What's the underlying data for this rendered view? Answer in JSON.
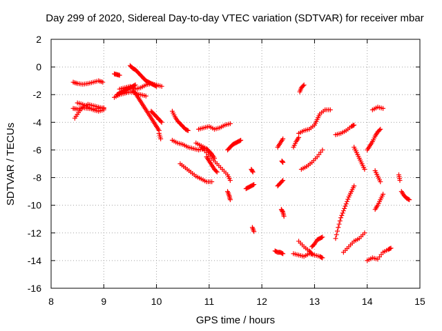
{
  "chart_data": {
    "type": "scatter",
    "title": "Day 299 of 2020, Sidereal Day-to-day VTEC variation (SDTVAR) for receiver mbar",
    "xlabel": "GPS time / hours",
    "ylabel": "SDTVAR / TECUs",
    "xlim": [
      8,
      15
    ],
    "ylim": [
      -16,
      2
    ],
    "xticks": [
      "8",
      "9",
      "10",
      "11",
      "12",
      "13",
      "14",
      "15"
    ],
    "yticks": [
      "2",
      "0",
      "-2",
      "-4",
      "-6",
      "-8",
      "-10",
      "-12",
      "-14",
      "-16"
    ],
    "grid": true,
    "marker": "plus",
    "color": "#ff0000",
    "segments": [
      {
        "x": [
          8.42,
          8.5,
          8.6,
          8.7,
          8.8,
          8.9,
          8.98
        ],
        "y": [
          -1.1,
          -1.2,
          -1.25,
          -1.2,
          -1.1,
          -1.0,
          -1.1
        ]
      },
      {
        "x": [
          8.42,
          8.5,
          8.6,
          8.7,
          8.8,
          8.9,
          9.0
        ],
        "y": [
          -3.0,
          -3.05,
          -2.95,
          -3.0,
          -3.05,
          -3.0,
          -2.95
        ]
      },
      {
        "x": [
          8.45,
          8.52,
          8.6,
          8.7,
          8.8,
          8.9,
          9.0
        ],
        "y": [
          -3.7,
          -3.3,
          -2.9,
          -2.7,
          -2.8,
          -2.9,
          -3.0
        ]
      },
      {
        "x": [
          8.5,
          8.6,
          8.7,
          8.8,
          8.9,
          9.0
        ],
        "y": [
          -2.6,
          -2.7,
          -2.9,
          -3.1,
          -3.2,
          -3.1
        ]
      },
      {
        "x": [
          9.2,
          9.25,
          9.3
        ],
        "y": [
          -0.5,
          -0.55,
          -0.6
        ]
      },
      {
        "x": [
          9.2,
          9.3,
          9.4,
          9.5,
          9.6,
          9.7,
          9.8
        ],
        "y": [
          -2.2,
          -2.0,
          -1.9,
          -1.8,
          -1.9,
          -2.0,
          -2.1
        ]
      },
      {
        "x": [
          9.3,
          9.4,
          9.5,
          9.6,
          9.7,
          9.8,
          9.9,
          10.0,
          10.1
        ],
        "y": [
          -1.6,
          -1.5,
          -1.4,
          -1.6,
          -1.5,
          -1.3,
          -1.2,
          -1.3,
          -1.4
        ]
      },
      {
        "x": [
          9.5,
          9.55,
          9.6,
          9.65,
          9.7,
          9.75,
          9.8,
          9.85,
          9.9,
          9.95,
          10.0
        ],
        "y": [
          0.1,
          -0.1,
          -0.2,
          -0.4,
          -0.6,
          -0.8,
          -1.0,
          -1.1,
          -1.2,
          -1.3,
          -1.4
        ]
      },
      {
        "x": [
          9.55,
          9.6,
          9.65,
          9.7,
          9.75,
          9.8,
          9.85,
          9.9,
          9.95,
          10.0,
          10.05
        ],
        "y": [
          -1.7,
          -1.9,
          -2.2,
          -2.5,
          -2.8,
          -3.1,
          -3.4,
          -3.7,
          -4.0,
          -4.3,
          -4.6
        ]
      },
      {
        "x": [
          9.25,
          9.3,
          9.35,
          9.4,
          9.45,
          9.5,
          9.55,
          9.6
        ],
        "y": [
          -2.0,
          -1.9,
          -1.8,
          -1.7,
          -1.6,
          -1.5,
          -1.4,
          -1.3
        ]
      },
      {
        "x": [
          9.9,
          9.95,
          10.0,
          10.05,
          10.1
        ],
        "y": [
          -3.2,
          -3.4,
          -3.6,
          -3.8,
          -4.0
        ]
      },
      {
        "x": [
          10.05,
          10.08
        ],
        "y": [
          -4.8,
          -5.2
        ]
      },
      {
        "x": [
          10.3,
          10.35,
          10.4,
          10.45,
          10.5,
          10.55,
          10.6
        ],
        "y": [
          -3.2,
          -3.6,
          -3.9,
          -4.1,
          -4.3,
          -4.5,
          -4.6
        ]
      },
      {
        "x": [
          10.3,
          10.4,
          10.5,
          10.6,
          10.7,
          10.8,
          10.9
        ],
        "y": [
          -5.3,
          -5.5,
          -5.6,
          -5.8,
          -5.9,
          -6.0,
          -5.9
        ]
      },
      {
        "x": [
          10.45,
          10.55,
          10.65,
          10.75,
          10.85,
          10.95,
          11.05
        ],
        "y": [
          -7.0,
          -7.3,
          -7.6,
          -7.9,
          -8.1,
          -8.3,
          -8.3
        ]
      },
      {
        "x": [
          10.8,
          10.9,
          11.0,
          11.1,
          11.2,
          11.3,
          11.4
        ],
        "y": [
          -4.5,
          -4.4,
          -4.3,
          -4.5,
          -4.4,
          -4.2,
          -4.1
        ]
      },
      {
        "x": [
          10.75,
          10.85,
          10.95,
          11.0,
          11.05,
          11.1
        ],
        "y": [
          -5.5,
          -5.7,
          -5.9,
          -6.1,
          -6.3,
          -6.6
        ]
      },
      {
        "x": [
          10.85,
          10.95,
          11.05,
          11.15,
          11.25,
          11.35,
          11.4
        ],
        "y": [
          -5.8,
          -6.2,
          -6.6,
          -7.0,
          -7.4,
          -7.8,
          -8.2
        ]
      },
      {
        "x": [
          10.95,
          11.0,
          11.05,
          11.1,
          11.15
        ],
        "y": [
          -6.5,
          -6.8,
          -7.1,
          -7.4,
          -7.6
        ]
      },
      {
        "x": [
          11.35,
          11.4,
          11.45,
          11.5,
          11.55,
          11.6
        ],
        "y": [
          -6.0,
          -5.8,
          -5.6,
          -5.5,
          -5.4,
          -5.3
        ]
      },
      {
        "x": [
          11.35,
          11.38,
          11.4
        ],
        "y": [
          -9.0,
          -9.3,
          -9.6
        ]
      },
      {
        "x": [
          11.7,
          11.75,
          11.8,
          11.85
        ],
        "y": [
          -8.8,
          -8.7,
          -8.6,
          -8.5
        ]
      },
      {
        "x": [
          11.8,
          11.83
        ],
        "y": [
          -7.4,
          -7.6
        ]
      },
      {
        "x": [
          11.82,
          11.85
        ],
        "y": [
          -11.6,
          -11.9
        ]
      },
      {
        "x": [
          12.3,
          12.35,
          12.4
        ],
        "y": [
          -5.8,
          -5.5,
          -5.2
        ]
      },
      {
        "x": [
          12.3,
          12.35,
          12.4
        ],
        "y": [
          -8.6,
          -8.4,
          -8.2
        ]
      },
      {
        "x": [
          12.38,
          12.4
        ],
        "y": [
          -6.8,
          -6.9
        ]
      },
      {
        "x": [
          12.37,
          12.4,
          12.42
        ],
        "y": [
          -10.3,
          -10.5,
          -10.8
        ]
      },
      {
        "x": [
          12.25,
          12.3,
          12.35,
          12.4
        ],
        "y": [
          -13.3,
          -13.4,
          -13.4,
          -13.5
        ]
      },
      {
        "x": [
          12.72,
          12.75,
          12.8
        ],
        "y": [
          -1.8,
          -1.5,
          -1.3
        ]
      },
      {
        "x": [
          12.7,
          12.8,
          12.9,
          13.0,
          13.05,
          13.1,
          13.2,
          13.3
        ],
        "y": [
          -4.8,
          -4.6,
          -4.5,
          -4.2,
          -3.8,
          -3.4,
          -3.1,
          -3.1
        ]
      },
      {
        "x": [
          12.75,
          12.85,
          12.95,
          13.05,
          13.15
        ],
        "y": [
          -7.4,
          -7.2,
          -6.9,
          -6.5,
          -6.0
        ]
      },
      {
        "x": [
          12.6,
          12.65,
          12.7
        ],
        "y": [
          -5.8,
          -5.4,
          -5.1
        ]
      },
      {
        "x": [
          12.6,
          12.7,
          12.8,
          12.9,
          13.0,
          13.1,
          13.15
        ],
        "y": [
          -13.5,
          -13.6,
          -13.7,
          -13.5,
          -13.6,
          -13.7,
          -13.8
        ]
      },
      {
        "x": [
          12.7,
          12.8,
          12.9,
          12.95
        ],
        "y": [
          -12.6,
          -13.0,
          -13.3,
          -13.5
        ]
      },
      {
        "x": [
          12.95,
          13.0,
          13.05,
          13.1,
          13.15
        ],
        "y": [
          -13.0,
          -12.8,
          -12.5,
          -12.4,
          -12.3
        ]
      },
      {
        "x": [
          13.4,
          13.5,
          13.6,
          13.7,
          13.75
        ],
        "y": [
          -4.9,
          -4.8,
          -4.6,
          -4.3,
          -4.2
        ]
      },
      {
        "x": [
          13.4,
          13.45,
          13.5,
          13.55,
          13.6,
          13.65,
          13.7,
          13.75
        ],
        "y": [
          -12.4,
          -11.6,
          -10.9,
          -10.4,
          -9.9,
          -9.4,
          -9.0,
          -8.6
        ]
      },
      {
        "x": [
          13.55,
          13.65,
          13.75,
          13.85,
          13.95
        ],
        "y": [
          -13.4,
          -13.0,
          -12.6,
          -12.4,
          -12.0
        ]
      },
      {
        "x": [
          13.75,
          13.8,
          13.85,
          13.9,
          13.95
        ],
        "y": [
          -5.8,
          -6.2,
          -6.6,
          -7.0,
          -7.4
        ]
      },
      {
        "x": [
          14.0,
          14.05,
          14.1,
          14.15,
          14.2,
          14.25
        ],
        "y": [
          -6.0,
          -5.7,
          -5.4,
          -5.0,
          -4.7,
          -4.5
        ]
      },
      {
        "x": [
          14.1,
          14.2,
          14.3
        ],
        "y": [
          -3.1,
          -2.9,
          -3.0
        ]
      },
      {
        "x": [
          14.15,
          14.2,
          14.25
        ],
        "y": [
          -7.5,
          -7.9,
          -8.3
        ]
      },
      {
        "x": [
          14.15,
          14.2,
          14.25,
          14.3
        ],
        "y": [
          -10.3,
          -10.0,
          -9.6,
          -9.2
        ]
      },
      {
        "x": [
          14.0,
          14.1,
          14.2,
          14.3,
          14.4,
          14.45
        ],
        "y": [
          -14.0,
          -13.8,
          -13.9,
          -13.4,
          -13.2,
          -13.1
        ]
      },
      {
        "x": [
          14.6,
          14.62
        ],
        "y": [
          -7.8,
          -8.2
        ]
      },
      {
        "x": [
          14.65,
          14.7,
          14.75,
          14.8
        ],
        "y": [
          -9.0,
          -9.3,
          -9.5,
          -9.6
        ]
      }
    ]
  }
}
